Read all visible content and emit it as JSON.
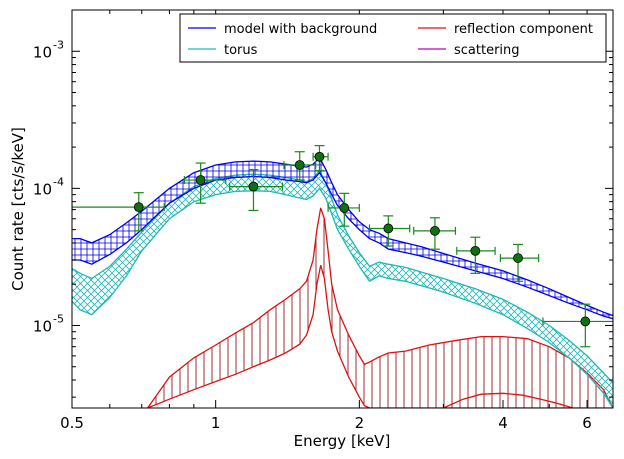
{
  "chart_data": {
    "type": "line",
    "xlabel": "Energy [keV]",
    "ylabel": "Count rate [cts/s/keV]",
    "xscale": "log",
    "yscale": "log",
    "xlim": [
      0.5,
      6.8
    ],
    "ylim": [
      2.5e-06,
      0.002
    ],
    "x_ticks": [
      {
        "value": 0.5,
        "label": "0.5"
      },
      {
        "value": 1,
        "label": "1"
      },
      {
        "value": 2,
        "label": "2"
      },
      {
        "value": 4,
        "label": "4"
      },
      {
        "value": 6,
        "label": "6"
      }
    ],
    "y_ticks": [
      {
        "value": 1e-05,
        "mantissa": "10",
        "exp": "-5"
      },
      {
        "value": 0.0001,
        "mantissa": "10",
        "exp": "-4"
      },
      {
        "value": 0.001,
        "mantissa": "10",
        "exp": "-3"
      }
    ],
    "grid": false,
    "legend_position": "top-right",
    "colors": {
      "model": "#0000ee",
      "torus": "#20b8b8",
      "reflection": "#e01010",
      "scattering": "#c000c0",
      "data": "#1a8a1a",
      "hatch": "#8b2020"
    },
    "legend": [
      {
        "label": "model with background",
        "color": "#0000ee"
      },
      {
        "label": "reflection component",
        "color": "#e01010"
      },
      {
        "label": "torus",
        "color": "#20b8b8"
      },
      {
        "label": "scattering",
        "color": "#c000c0"
      }
    ],
    "series": [
      {
        "name": "model with background",
        "x": [
          0.5,
          0.52,
          0.55,
          0.6,
          0.65,
          0.7,
          0.8,
          0.9,
          1.0,
          1.1,
          1.2,
          1.3,
          1.4,
          1.5,
          1.55,
          1.6,
          1.65,
          1.7,
          1.75,
          1.8,
          1.9,
          2.0,
          2.1,
          2.2,
          2.3,
          2.5,
          2.7,
          3.0,
          3.5,
          4.0,
          4.5,
          5.0,
          5.5,
          6.0,
          6.5,
          6.8
        ],
        "lower": [
          3e-05,
          3e-05,
          2.8e-05,
          3.3e-05,
          4e-05,
          5e-05,
          7.8e-05,
          0.0001,
          0.000115,
          0.00012,
          0.000122,
          0.00012,
          0.000115,
          0.000112,
          0.00011,
          0.000115,
          0.00013,
          0.00011,
          9e-05,
          7.5e-05,
          6e-05,
          5e-05,
          4.3e-05,
          4e-05,
          3.6e-05,
          3.4e-05,
          3.2e-05,
          2.9e-05,
          2.5e-05,
          2.2e-05,
          1.9e-05,
          1.65e-05,
          1.45e-05,
          1.3e-05,
          1.17e-05,
          1.12e-05
        ],
        "upper": [
          4.3e-05,
          4.3e-05,
          4e-05,
          4.6e-05,
          5.6e-05,
          6.8e-05,
          0.0001,
          0.00013,
          0.000148,
          0.000156,
          0.000158,
          0.000156,
          0.00015,
          0.000145,
          0.000143,
          0.00015,
          0.000168,
          0.000138,
          0.00011,
          9e-05,
          7e-05,
          5.7e-05,
          5e-05,
          4.7e-05,
          4.3e-05,
          4e-05,
          3.75e-05,
          3.35e-05,
          2.85e-05,
          2.5e-05,
          2.15e-05,
          1.85e-05,
          1.6e-05,
          1.4e-05,
          1.25e-05,
          1.18e-05
        ]
      },
      {
        "name": "torus",
        "x": [
          0.5,
          0.52,
          0.55,
          0.6,
          0.65,
          0.7,
          0.8,
          0.9,
          1.0,
          1.1,
          1.2,
          1.3,
          1.4,
          1.5,
          1.55,
          1.6,
          1.65,
          1.7,
          1.75,
          1.8,
          1.9,
          2.0,
          2.1,
          2.2,
          2.3,
          2.5,
          2.7,
          3.0,
          3.5,
          4.0,
          4.5,
          5.0,
          5.5,
          6.0,
          6.5,
          6.8
        ],
        "lower": [
          1.5e-05,
          1.3e-05,
          1.2e-05,
          1.6e-05,
          2.3e-05,
          3.5e-05,
          6e-05,
          8e-05,
          9e-05,
          9.5e-05,
          9.6e-05,
          9.5e-05,
          9e-05,
          8.5e-05,
          8.3e-05,
          8.8e-05,
          0.0001,
          8.5e-05,
          6.5e-05,
          5e-05,
          3.6e-05,
          2.7e-05,
          2.1e-05,
          2.3e-05,
          2.2e-05,
          2.1e-05,
          1.95e-05,
          1.75e-05,
          1.45e-05,
          1.2e-05,
          9.5e-06,
          7.5e-06,
          5.8e-06,
          4.4e-06,
          3.2e-06,
          2.5e-06
        ],
        "upper": [
          2.6e-05,
          2.4e-05,
          2.2e-05,
          2.7e-05,
          3.6e-05,
          4.8e-05,
          7.8e-05,
          0.000103,
          0.000118,
          0.000125,
          0.000127,
          0.000125,
          0.00012,
          0.000115,
          0.000112,
          0.000118,
          0.000135,
          0.00011,
          8.4e-05,
          6.4e-05,
          4.5e-05,
          3.4e-05,
          2.7e-05,
          2.9e-05,
          2.8e-05,
          2.65e-05,
          2.45e-05,
          2.2e-05,
          1.85e-05,
          1.55e-05,
          1.25e-05,
          1e-05,
          7.8e-06,
          6e-06,
          4.5e-06,
          3.8e-06
        ]
      },
      {
        "name": "reflection component",
        "x": [
          0.72,
          0.8,
          0.9,
          1.0,
          1.1,
          1.2,
          1.3,
          1.4,
          1.5,
          1.55,
          1.6,
          1.63,
          1.66,
          1.69,
          1.72,
          1.75,
          1.8,
          1.9,
          2.0,
          2.05,
          2.1,
          2.2,
          2.3,
          2.5,
          2.8,
          3.2,
          3.6,
          4.0,
          4.5,
          5.0,
          5.5,
          6.0,
          6.5,
          6.8
        ],
        "lower": [
          2.5e-06,
          2.9e-06,
          3.4e-06,
          3.9e-06,
          4.4e-06,
          5e-06,
          5.6e-06,
          6.3e-06,
          7.3e-06,
          8.5e-06,
          1.2e-05,
          2e-05,
          2.75e-05,
          2.2e-05,
          1.3e-05,
          9e-06,
          6.5e-06,
          4.2e-06,
          3e-06,
          2.6e-06,
          2.5e-06,
          2.5e-06,
          2.5e-06,
          2.5e-06,
          2.5e-06,
          2.5e-06,
          2.5e-06,
          2.5e-06,
          2.5e-06,
          2.5e-06,
          2.5e-06,
          2.5e-06,
          2.5e-06,
          2.5e-06
        ],
        "upper": [
          2.5e-06,
          4.2e-06,
          5.8e-06,
          7.2e-06,
          8.8e-06,
          1.05e-05,
          1.3e-05,
          1.55e-05,
          1.85e-05,
          2.1e-05,
          3e-05,
          5e-05,
          7.2e-05,
          6e-05,
          3.5e-05,
          2e-05,
          1.3e-05,
          8.5e-06,
          6e-06,
          5.2e-06,
          5.4e-06,
          5.9e-06,
          6.3e-06,
          6.5e-06,
          7.2e-06,
          7.8e-06,
          8.3e-06,
          8.3e-06,
          8e-06,
          7e-06,
          5.8e-06,
          4.5e-06,
          3.4e-06,
          2.5e-06
        ]
      },
      {
        "name": "reflection lower curve",
        "x": [
          3.0,
          3.3,
          3.6,
          4.0,
          4.4,
          4.8,
          5.2,
          5.6
        ],
        "values": [
          2.5e-06,
          2.9e-06,
          3.15e-06,
          3.2e-06,
          3.1e-06,
          2.9e-06,
          2.7e-06,
          2.5e-06
        ]
      },
      {
        "name": "data",
        "points": [
          {
            "x": 0.69,
            "y": 7.3e-05,
            "xerr": [
              0.5,
              0.78
            ],
            "yerr": [
              4.9e-05,
              9.3e-05
            ]
          },
          {
            "x": 0.93,
            "y": 0.000115,
            "xerr": [
              0.86,
              1.05
            ],
            "yerr": [
              7.8e-05,
              0.000153
            ]
          },
          {
            "x": 1.2,
            "y": 0.000103,
            "xerr": [
              1.07,
              1.38
            ],
            "yerr": [
              6.9e-05,
              0.000137
            ]
          },
          {
            "x": 1.5,
            "y": 0.000148,
            "xerr": [
              1.39,
              1.62
            ],
            "yerr": [
              0.000115,
              0.000185
            ]
          },
          {
            "x": 1.65,
            "y": 0.00017,
            "xerr": [
              1.6,
              1.72
            ],
            "yerr": [
              0.000135,
              0.000205
            ]
          },
          {
            "x": 1.86,
            "y": 7.2e-05,
            "xerr": [
              1.72,
              2.0
            ],
            "yerr": [
              5.3e-05,
              9.2e-05
            ]
          },
          {
            "x": 2.3,
            "y": 5.1e-05,
            "xerr": [
              2.1,
              2.55
            ],
            "yerr": [
              3.8e-05,
              6.3e-05
            ]
          },
          {
            "x": 2.88,
            "y": 4.9e-05,
            "xerr": [
              2.6,
              3.18
            ],
            "yerr": [
              3.6e-05,
              6.1e-05
            ]
          },
          {
            "x": 3.5,
            "y": 3.5e-05,
            "xerr": [
              3.2,
              3.85
            ],
            "yerr": [
              2.4e-05,
              4.4e-05
            ]
          },
          {
            "x": 4.3,
            "y": 3.1e-05,
            "xerr": [
              3.95,
              4.75
            ],
            "yerr": [
              2.1e-05,
              3.9e-05
            ]
          },
          {
            "x": 5.95,
            "y": 1.07e-05,
            "xerr": [
              4.85,
              6.8
            ],
            "yerr": [
              7e-06,
              1.43e-05
            ]
          }
        ]
      }
    ]
  }
}
